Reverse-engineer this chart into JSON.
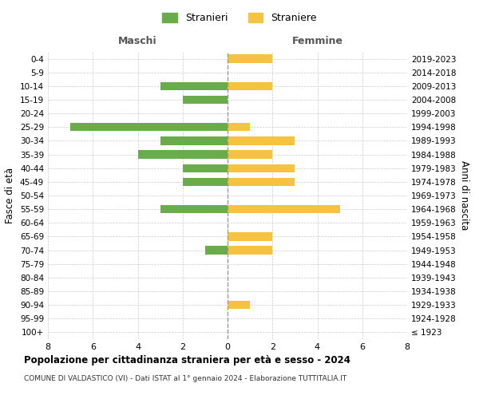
{
  "age_groups": [
    "100+",
    "95-99",
    "90-94",
    "85-89",
    "80-84",
    "75-79",
    "70-74",
    "65-69",
    "60-64",
    "55-59",
    "50-54",
    "45-49",
    "40-44",
    "35-39",
    "30-34",
    "25-29",
    "20-24",
    "15-19",
    "10-14",
    "5-9",
    "0-4"
  ],
  "birth_years": [
    "≤ 1923",
    "1924-1928",
    "1929-1933",
    "1934-1938",
    "1939-1943",
    "1944-1948",
    "1949-1953",
    "1954-1958",
    "1959-1963",
    "1964-1968",
    "1969-1973",
    "1974-1978",
    "1979-1983",
    "1984-1988",
    "1989-1993",
    "1994-1998",
    "1999-2003",
    "2004-2008",
    "2009-2013",
    "2014-2018",
    "2019-2023"
  ],
  "maschi": [
    0,
    0,
    0,
    0,
    0,
    0,
    1,
    0,
    0,
    3,
    0,
    2,
    2,
    4,
    3,
    7,
    0,
    2,
    3,
    0,
    0
  ],
  "femmine": [
    0,
    0,
    1,
    0,
    0,
    0,
    2,
    2,
    0,
    5,
    0,
    3,
    3,
    2,
    3,
    1,
    0,
    0,
    2,
    0,
    2
  ],
  "color_maschi": "#6aab4b",
  "color_femmine": "#f5c242",
  "title": "Popolazione per cittadinanza straniera per età e sesso - 2024",
  "subtitle": "COMUNE DI VALDASTICO (VI) - Dati ISTAT al 1° gennaio 2024 - Elaborazione TUTTITALIA.IT",
  "xlabel_left": "Maschi",
  "xlabel_right": "Femmine",
  "ylabel_left": "Fasce di età",
  "ylabel_right": "Anni di nascita",
  "legend_maschi": "Stranieri",
  "legend_femmine": "Straniere",
  "xlim": 8,
  "background_color": "#ffffff"
}
